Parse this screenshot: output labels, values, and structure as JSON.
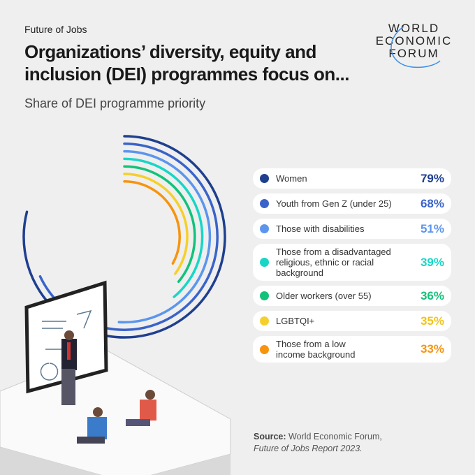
{
  "header": {
    "kicker": "Future of Jobs",
    "title": "Organizations’ diversity, equity and inclusion (DEI) programmes focus on...",
    "subtitle": "Share of DEI programme priority"
  },
  "logo": {
    "lines": [
      "WORLD",
      "ECONOMIC",
      "FORUM"
    ]
  },
  "chart_data": {
    "type": "radial-bar",
    "title": "Organizations’ diversity, equity and inclusion (DEI) programmes focus on...",
    "subtitle": "Share of DEI programme priority",
    "unit": "%",
    "categories": [
      "Women",
      "Youth from Gen Z (under 25)",
      "Those with disabilities",
      "Those from a disadvantaged religious, ethnic or racial background",
      "Older workers (over 55)",
      "LGBTQI+",
      "Those from a low income background"
    ],
    "values": [
      79,
      68,
      51,
      39,
      36,
      35,
      33
    ],
    "labels": [
      "79%",
      "68%",
      "51%",
      "39%",
      "36%",
      "35%",
      "33%"
    ],
    "colors": [
      "#1f3f8f",
      "#3a63c9",
      "#5b95ee",
      "#18d6c6",
      "#13c27a",
      "#f5d02c",
      "#f7940f"
    ],
    "legend": "right"
  },
  "source": {
    "label": "Source:",
    "text": "World Economic Forum,",
    "report": "Future of Jobs Report 2023."
  }
}
